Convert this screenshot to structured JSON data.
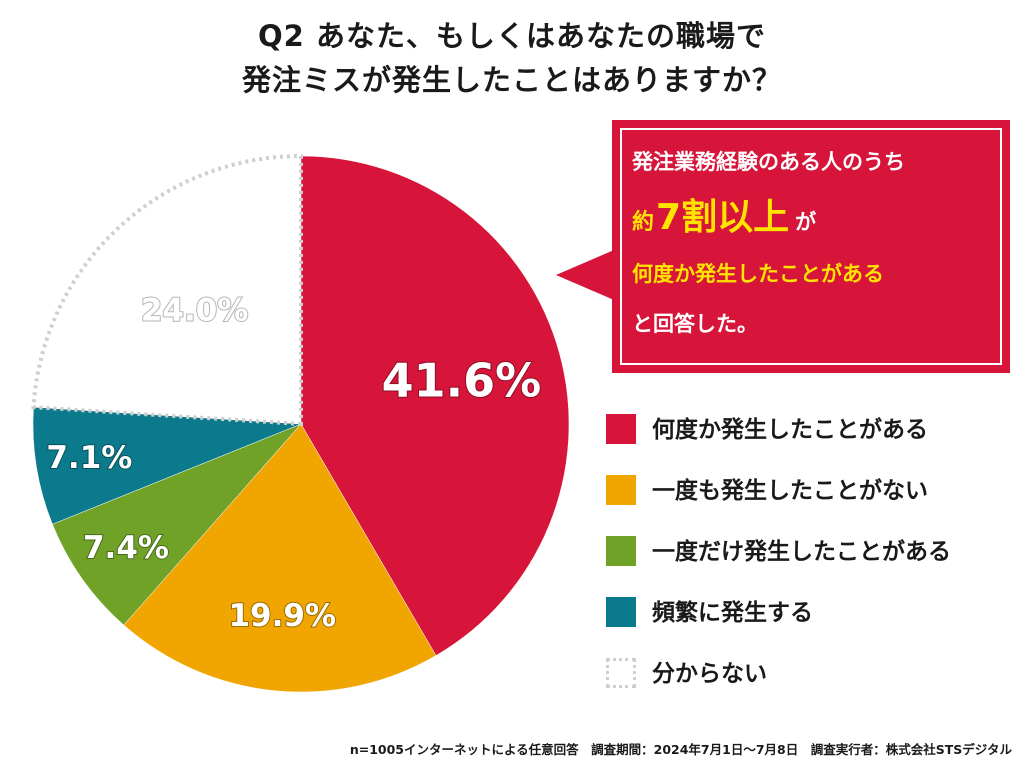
{
  "title": {
    "line1": "Q2 あなた、もしくはあなたの職場で",
    "line2": "発注ミスが発生したことはありますか？"
  },
  "callout": {
    "line1": "発注業務経験のある人のうち",
    "line2_pre": "約",
    "line2_big": "7割以上",
    "line2_post": "が",
    "line3": "何度か発生したことがある",
    "line4": "と回答した。"
  },
  "chart_data": {
    "type": "pie",
    "title": "Q2 あなた、もしくはあなたの職場で発注ミスが発生したことはありますか？",
    "start_angle_deg": 0,
    "direction": "clockwise",
    "slices": [
      {
        "label": "何度か発生したことがある",
        "value": 41.6,
        "display": "41.6%",
        "color": "#d7143a"
      },
      {
        "label": "一度も発生したことがない",
        "value": 19.9,
        "display": "19.9%",
        "color": "#f0a500"
      },
      {
        "label": "一度だけ発生したことがある",
        "value": 7.4,
        "display": "7.4%",
        "color": "#6fa227"
      },
      {
        "label": "頻繁に発生する",
        "value": 7.1,
        "display": "7.1%",
        "color": "#0b7a8c"
      },
      {
        "label": "分からない",
        "value": 24.0,
        "display": "24.0%",
        "color": "#ffffff",
        "style": "dotted"
      }
    ]
  },
  "footnote": "n=1005インターネットによる任意回答　調査期間：2024年7月1日～7月8日　調査実行者：株式会社STSデジタル"
}
